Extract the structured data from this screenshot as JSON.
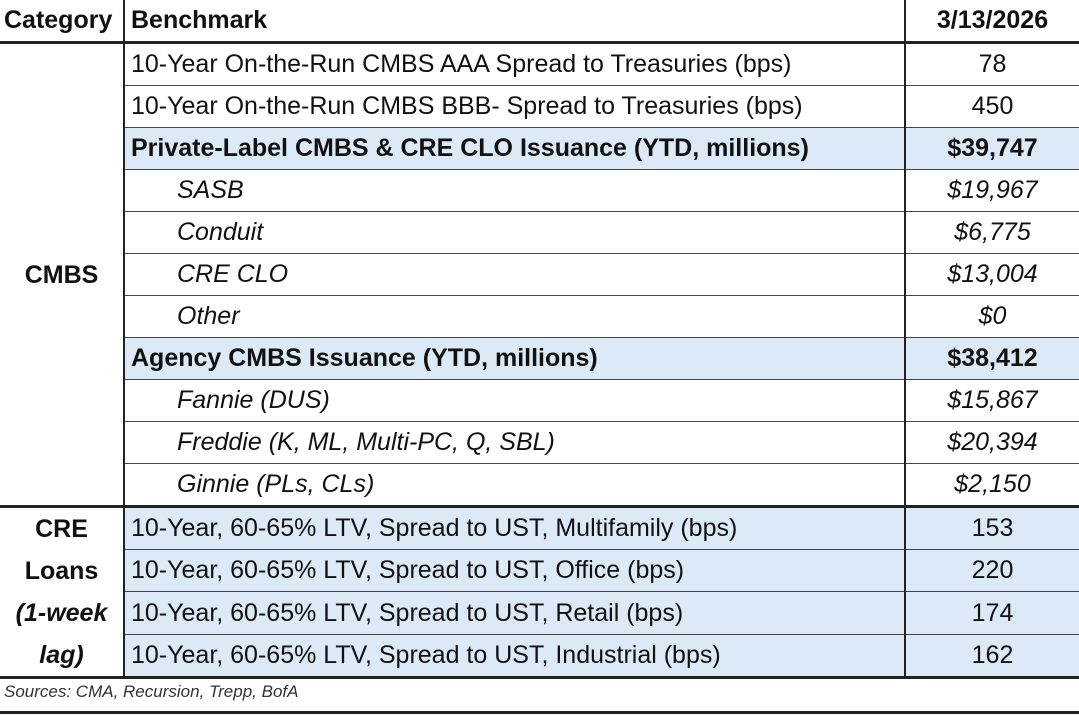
{
  "header": {
    "category": "Category",
    "benchmark": "Benchmark",
    "date": "3/13/2026"
  },
  "cmbs": {
    "category": "CMBS",
    "rows": [
      {
        "label": "10-Year On-the-Run CMBS AAA Spread to Treasuries (bps)",
        "value": "78"
      },
      {
        "label": "10-Year On-the-Run CMBS BBB- Spread to Treasuries (bps)",
        "value": "450"
      },
      {
        "label": "Private-Label CMBS & CRE CLO Issuance (YTD, millions)",
        "value": "$39,747"
      },
      {
        "label": "SASB",
        "value": "$19,967"
      },
      {
        "label": "Conduit",
        "value": "$6,775"
      },
      {
        "label": "CRE CLO",
        "value": "$13,004"
      },
      {
        "label": "Other",
        "value": "$0"
      },
      {
        "label": "Agency CMBS Issuance (YTD, millions)",
        "value": "$38,412"
      },
      {
        "label": "Fannie (DUS)",
        "value": "$15,867"
      },
      {
        "label": "Freddie (K, ML, Multi-PC, Q, SBL)",
        "value": "$20,394"
      },
      {
        "label": "Ginnie (PLs, CLs)",
        "value": "$2,150"
      }
    ]
  },
  "cre_loans": {
    "category_line1": "CRE",
    "category_line2": "Loans",
    "category_line3": "(1-week",
    "category_line4": "lag)",
    "rows": [
      {
        "label": "10-Year, 60-65% LTV, Spread to UST, Multifamily (bps)",
        "value": "153"
      },
      {
        "label": "10-Year, 60-65% LTV, Spread to UST, Office (bps)",
        "value": "220"
      },
      {
        "label": "10-Year, 60-65% LTV, Spread to UST, Retail (bps)",
        "value": "174"
      },
      {
        "label": "10-Year, 60-65% LTV, Spread to UST, Industrial (bps)",
        "value": "162"
      }
    ]
  },
  "sources": "Sources: CMA, Recursion, Trepp, BofA",
  "colors": {
    "highlight": "#dce9f6",
    "rule": "#222222"
  }
}
